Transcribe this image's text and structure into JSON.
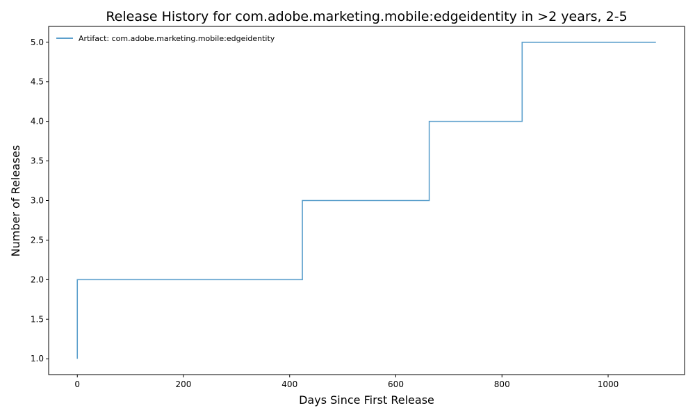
{
  "chart_data": {
    "type": "line",
    "drawstyle": "steps-post",
    "title": "Release History for com.adobe.marketing.mobile:edgeidentity in >2 years, 2-5",
    "xlabel": "Days Since First Release",
    "ylabel": "Number of Releases",
    "xlim": [
      -54,
      1144
    ],
    "ylim": [
      0.8,
      5.2
    ],
    "x_ticks": [
      0,
      200,
      400,
      600,
      800,
      1000
    ],
    "x_tick_labels": [
      "0",
      "200",
      "400",
      "600",
      "800",
      "1000"
    ],
    "y_ticks": [
      1.0,
      1.5,
      2.0,
      2.5,
      3.0,
      3.5,
      4.0,
      4.5,
      5.0
    ],
    "y_tick_labels": [
      "1.0",
      "1.5",
      "2.0",
      "2.5",
      "3.0",
      "3.5",
      "4.0",
      "4.5",
      "5.0"
    ],
    "grid": false,
    "legend_position": "upper-left",
    "series": [
      {
        "name": "Artifact: com.adobe.marketing.mobile:edgeidentity",
        "color": "#5b9fcc",
        "x": [
          0,
          0,
          424,
          663,
          838,
          1090
        ],
        "y": [
          1,
          2,
          3,
          4,
          5,
          5
        ]
      }
    ]
  }
}
